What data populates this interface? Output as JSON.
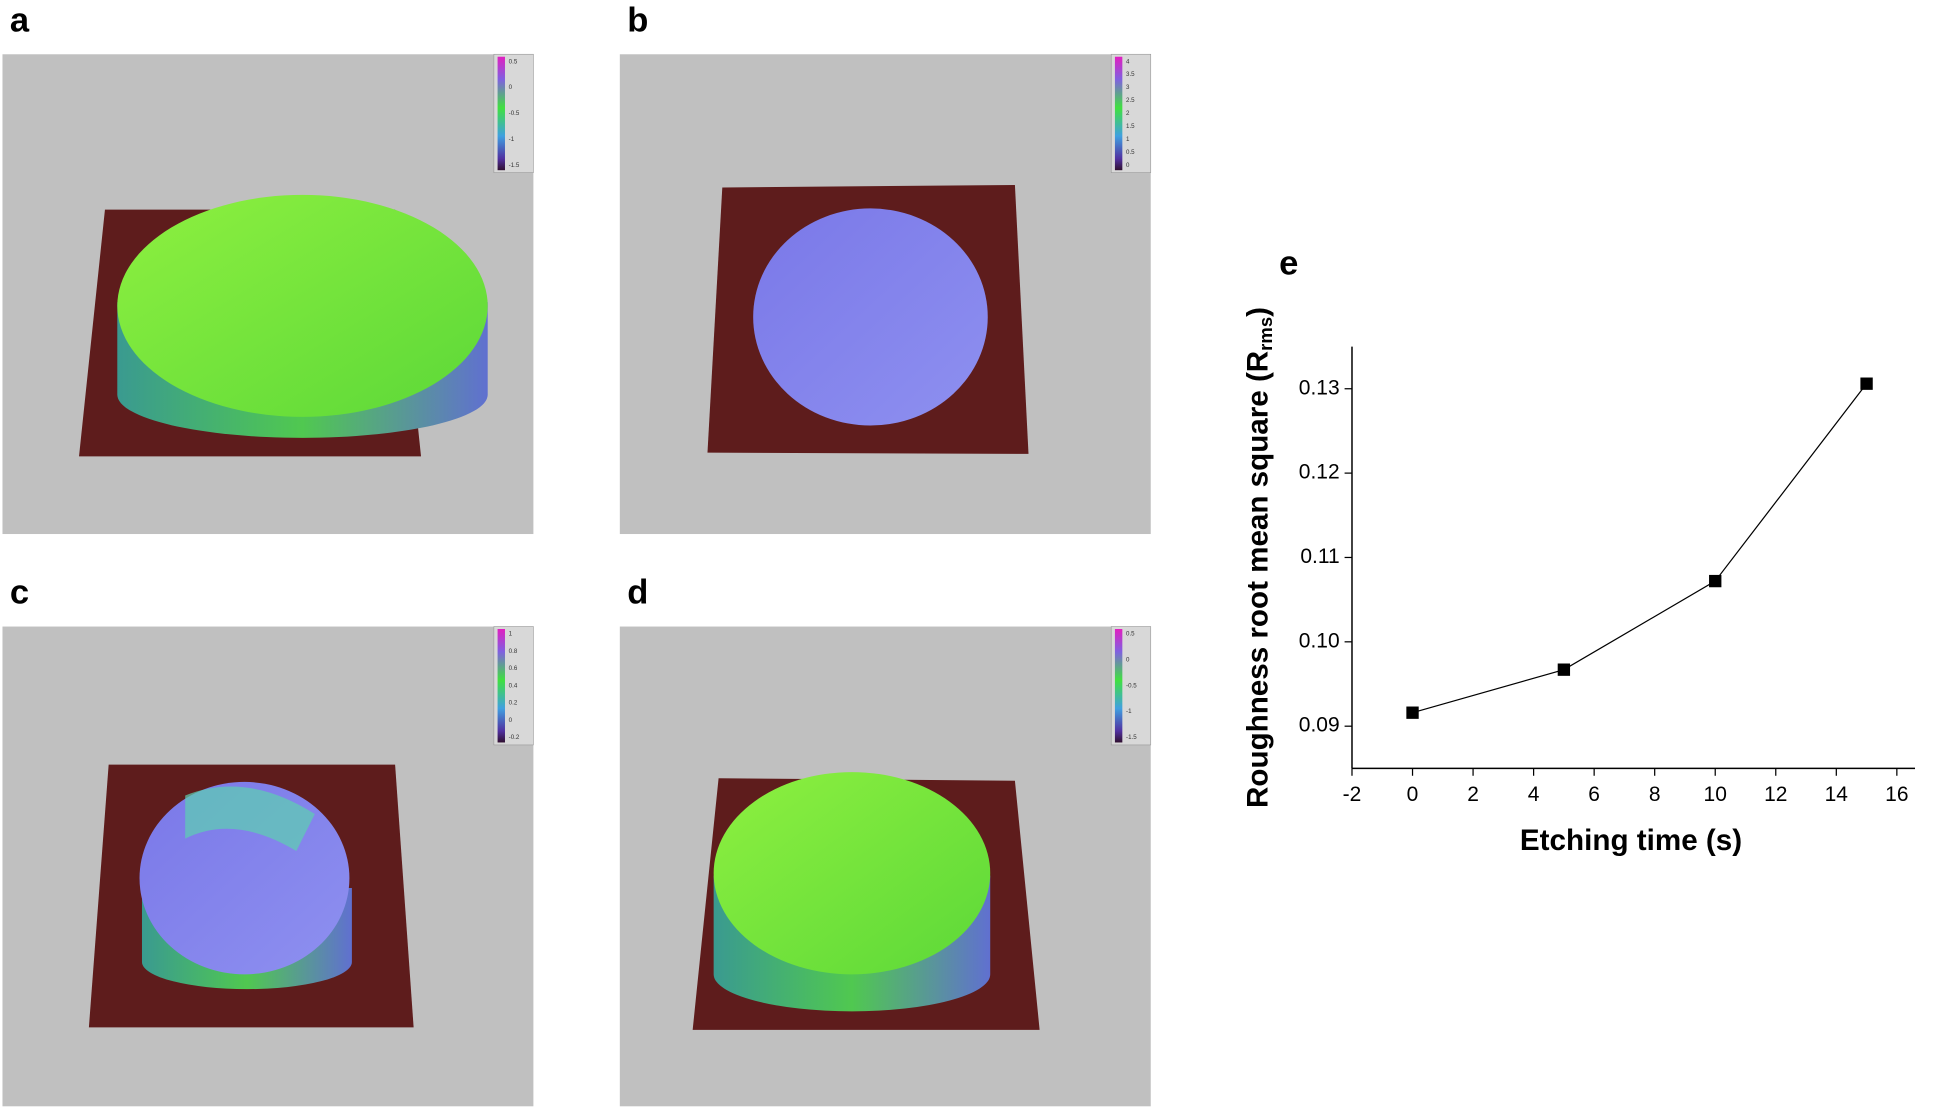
{
  "panels": [
    {
      "label": "a",
      "colorbar_ticks": [
        "0.5",
        "0",
        "-0.5",
        "-1",
        "-1.5"
      ]
    },
    {
      "label": "b",
      "colorbar_ticks": [
        "4",
        "3.5",
        "3",
        "2.5",
        "2",
        "1.5",
        "1",
        "0.5",
        "0"
      ]
    },
    {
      "label": "c",
      "colorbar_ticks": [
        "1",
        "0.8",
        "0.6",
        "0.4",
        "0.2",
        "0",
        "-0.2"
      ]
    },
    {
      "label": "d",
      "colorbar_ticks": [
        "0.5",
        "0",
        "-0.5",
        "-1",
        "-1.5"
      ]
    }
  ],
  "chart_data": {
    "type": "line",
    "panel_label": "e",
    "xlabel": "Etching time (s)",
    "ylabel": "Roughness root mean square (R",
    "ylabel_sub": "rms",
    "ylabel_end": ")",
    "x": [
      0,
      5,
      10,
      15
    ],
    "values": [
      0.0916,
      0.0967,
      0.1072,
      0.1306
    ],
    "color": "#000000",
    "xlim": [
      -2,
      16.6
    ],
    "xticks": [
      -2,
      0,
      2,
      4,
      6,
      8,
      10,
      12,
      14,
      16
    ],
    "ylim": [
      0.085,
      0.135
    ],
    "yticks": [
      0.09,
      {
        "value": 0.1,
        "label": "0.10"
      },
      0.11,
      0.12,
      0.13
    ]
  }
}
